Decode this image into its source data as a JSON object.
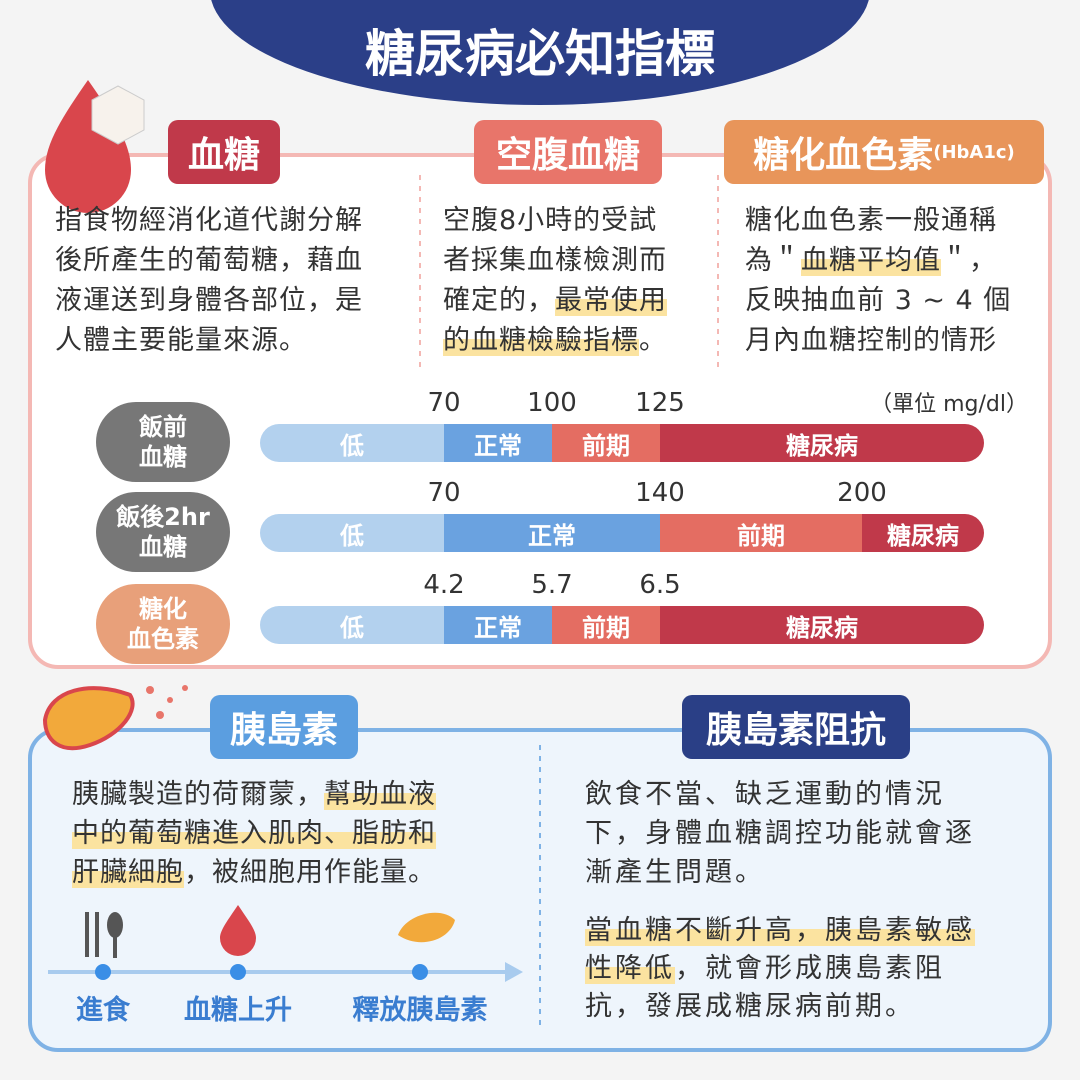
{
  "title": "糖尿病必知指標",
  "top": {
    "columns": [
      {
        "tag": "血糖",
        "lines": [
          [
            {
              "text": "指食物經消化道代謝分解"
            }
          ],
          [
            {
              "text": "後所產生的葡萄糖，藉血"
            }
          ],
          [
            {
              "text": "液運送到身體各部位，是"
            }
          ],
          [
            {
              "text": "人體主要能量來源。"
            }
          ]
        ]
      },
      {
        "tag": "空腹血糖",
        "lines": [
          [
            {
              "text": "空腹8小時的受試"
            }
          ],
          [
            {
              "text": "者採集血樣檢測而"
            }
          ],
          [
            {
              "text": "確定的，"
            },
            {
              "text": "最常使用",
              "highlight": true
            }
          ],
          [
            {
              "text": "的血糖檢驗指標",
              "highlight": true
            },
            {
              "text": "。"
            }
          ]
        ]
      },
      {
        "tag": "糖化血色素",
        "tag_sup": "(HbA1c)",
        "lines": [
          [
            {
              "text": "糖化血色素一般通稱"
            }
          ],
          [
            {
              "text": "為＂"
            },
            {
              "text": "血糖平均值",
              "highlight": true
            },
            {
              "text": "＂，"
            }
          ],
          [
            {
              "text": "反映抽血前 3 ~ 4 個"
            }
          ],
          [
            {
              "text": "月內血糖控制的情形"
            }
          ]
        ]
      }
    ],
    "unit": "（單位 mg/dl）",
    "scales": [
      {
        "label": [
          "飯前",
          "血糖"
        ],
        "thresholds": [
          "70",
          "100",
          "125"
        ],
        "segments": [
          "低",
          "正常",
          "前期",
          "糖尿病"
        ]
      },
      {
        "label": [
          "飯後2hr",
          "血糖"
        ],
        "thresholds": [
          "70",
          "140",
          "200"
        ],
        "segments": [
          "低",
          "正常",
          "前期",
          "糖尿病"
        ]
      },
      {
        "label": [
          "糖化",
          "血色素"
        ],
        "thresholds": [
          "4.2",
          "5.7",
          "6.5"
        ],
        "segments": [
          "低",
          "正常",
          "前期",
          "糖尿病"
        ]
      }
    ]
  },
  "bottom": {
    "insulin": {
      "tag": "胰島素",
      "lines": [
        [
          {
            "text": "胰臟製造的荷爾蒙，"
          },
          {
            "text": "幫助血液",
            "highlight": true
          }
        ],
        [
          {
            "text": "中的葡萄糖進入肌肉、脂肪和",
            "highlight": true
          }
        ],
        [
          {
            "text": "肝臟細胞",
            "highlight": true
          },
          {
            "text": "，被細胞用作能量。"
          }
        ]
      ],
      "timeline": [
        "進食",
        "血糖上升",
        "釋放胰島素"
      ]
    },
    "resistance": {
      "tag": "胰島素阻抗",
      "lines": [
        [
          {
            "text": "飲食不當、缺乏運動的情況"
          }
        ],
        [
          {
            "text": "下，身體血糖調控功能就會逐"
          }
        ],
        [
          {
            "text": "漸產生問題。"
          }
        ]
      ],
      "lines2": [
        [
          {
            "text": "當血糖不斷升高，胰島素敏感",
            "highlight": true
          }
        ],
        [
          {
            "text": "性降低",
            "highlight": true
          },
          {
            "text": "，就會形成胰島素阻"
          }
        ],
        [
          {
            "text": "抗，發展成糖尿病前期。"
          }
        ]
      ]
    }
  }
}
